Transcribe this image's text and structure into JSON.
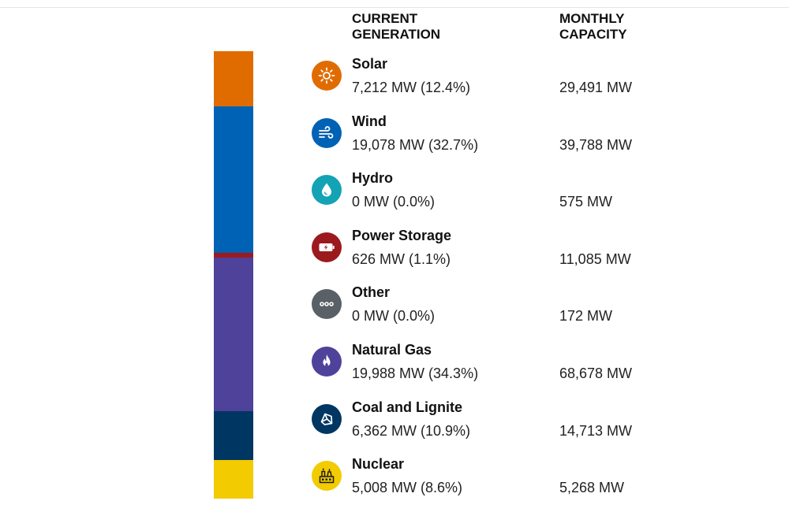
{
  "headers": {
    "generation": "CURRENT\nGENERATION",
    "capacity": "MONTHLY\nCAPACITY"
  },
  "chart_data": {
    "type": "bar",
    "categories": [
      "Solar",
      "Wind",
      "Hydro",
      "Power Storage",
      "Other",
      "Natural Gas",
      "Coal and Lignite",
      "Nuclear"
    ],
    "series": [
      {
        "values": [
          7212,
          19078,
          0,
          626,
          0,
          19988,
          6362,
          5008
        ]
      },
      {
        "values": [
          29491,
          39788,
          575,
          11085,
          172,
          68678,
          14713,
          5268
        ]
      }
    ],
    "share_percent": [
      12.4,
      32.7,
      0.0,
      1.1,
      0.0,
      34.3,
      10.9,
      8.6
    ],
    "colors": [
      "#e06c00",
      "#0062b4",
      "#13a3b4",
      "#9c1a1e",
      "#5a6068",
      "#4e429a",
      "#003662",
      "#f2cb00"
    ]
  },
  "rows": [
    {
      "name": "Solar",
      "generation": "7,212 MW (12.4%)",
      "capacity": "29,491 MW",
      "icon": "sun-icon",
      "color": "#e06c00"
    },
    {
      "name": "Wind",
      "generation": "19,078 MW (32.7%)",
      "capacity": "39,788 MW",
      "icon": "wind-icon",
      "color": "#0062b4"
    },
    {
      "name": "Hydro",
      "generation": "0 MW (0.0%)",
      "capacity": "575 MW",
      "icon": "water-drop-icon",
      "color": "#13a3b4"
    },
    {
      "name": "Power Storage",
      "generation": "626 MW (1.1%)",
      "capacity": "11,085 MW",
      "icon": "battery-icon",
      "color": "#9c1a1e"
    },
    {
      "name": "Other",
      "generation": "0 MW (0.0%)",
      "capacity": "172 MW",
      "icon": "more-dots-icon",
      "color": "#5a6068"
    },
    {
      "name": "Natural Gas",
      "generation": "19,988 MW (34.3%)",
      "capacity": "68,678 MW",
      "icon": "flame-icon",
      "color": "#4e429a"
    },
    {
      "name": "Coal and Lignite",
      "generation": "6,362 MW (10.9%)",
      "capacity": "14,713 MW",
      "icon": "coal-icon",
      "color": "#003662"
    },
    {
      "name": "Nuclear",
      "generation": "5,008 MW (8.6%)",
      "capacity": "5,268 MW",
      "icon": "nuclear-plant-icon",
      "color": "#f2cb00"
    }
  ]
}
